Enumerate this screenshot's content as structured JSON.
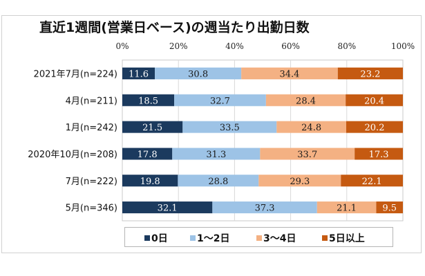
{
  "chart_data": {
    "type": "bar",
    "orientation": "horizontal",
    "stacked": true,
    "percent": true,
    "title": "直近1週間(営業日ベース)の週当たり出勤日数",
    "xlabel": "",
    "ylabel": "",
    "xlim": [
      0,
      100
    ],
    "x_ticks": [
      "0%",
      "20%",
      "40%",
      "60%",
      "80%",
      "100%"
    ],
    "x_tick_values": [
      0,
      20,
      40,
      60,
      80,
      100
    ],
    "grid": true,
    "legend_position": "bottom",
    "categories": [
      "2021年7月(n=224)",
      "4月(n=211)",
      "1月(n=242)",
      "2020年10月(n=208)",
      "7月(n=222)",
      "5月(n=346)"
    ],
    "series": [
      {
        "name": "0日",
        "color": "#1b3a5e",
        "label_color": "#ffffff",
        "values": [
          11.6,
          18.5,
          21.5,
          17.8,
          19.8,
          32.1
        ]
      },
      {
        "name": "1～2日",
        "color": "#9dc3e6",
        "label_color": "#1a1a1a",
        "values": [
          30.8,
          32.7,
          33.5,
          31.3,
          28.8,
          37.3
        ]
      },
      {
        "name": "3～4日",
        "color": "#f4b183",
        "label_color": "#1a1a1a",
        "values": [
          34.4,
          28.4,
          24.8,
          33.7,
          29.3,
          21.1
        ]
      },
      {
        "name": "5日以上",
        "color": "#c55a11",
        "label_color": "#ffffff",
        "values": [
          23.2,
          20.4,
          20.2,
          17.3,
          22.1,
          9.5
        ]
      }
    ],
    "value_labels": [
      [
        "11.6",
        "30.8",
        "34.4",
        "23.2"
      ],
      [
        "18.5",
        "32.7",
        "28.4",
        "20.4"
      ],
      [
        "21.5",
        "33.5",
        "24.8",
        "20.2"
      ],
      [
        "17.8",
        "31.3",
        "33.7",
        "17.3"
      ],
      [
        "19.8",
        "28.8",
        "29.3",
        "22.1"
      ],
      [
        "32.1",
        "37.3",
        "21.1",
        "9.5"
      ]
    ]
  }
}
